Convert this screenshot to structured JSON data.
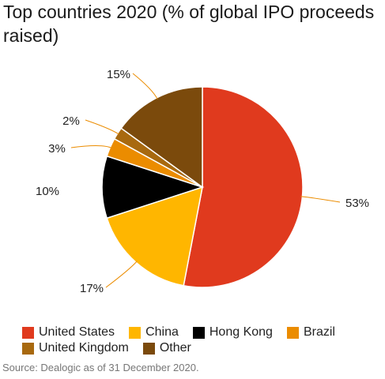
{
  "title": "Top countries 2020 (% of global IPO proceeds raised)",
  "source": "Source: Dealogic as of 31 December 2020.",
  "chart_data": {
    "type": "pie",
    "title": "Top countries 2020 (% of global IPO proceeds raised)",
    "slices": [
      {
        "label": "United States",
        "value": 53,
        "value_label": "53%",
        "color": "#e03a1e"
      },
      {
        "label": "China",
        "value": 17,
        "value_label": "17%",
        "color": "#ffb600"
      },
      {
        "label": "Hong Kong",
        "value": 10,
        "value_label": "10%",
        "color": "#000000"
      },
      {
        "label": "Brazil",
        "value": 3,
        "value_label": "3%",
        "color": "#eb8c00"
      },
      {
        "label": "United Kingdom",
        "value": 2,
        "value_label": "2%",
        "color": "#a8690f"
      },
      {
        "label": "Other",
        "value": 15,
        "value_label": "15%",
        "color": "#7b4a0c"
      }
    ],
    "legend_placement": "bottom",
    "leader_color": "#eb8c00"
  }
}
